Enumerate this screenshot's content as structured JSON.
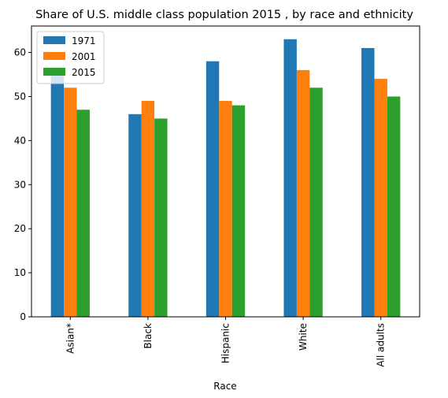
{
  "chart_data": {
    "type": "bar",
    "title": "Share of U.S. middle class population 2015 , by race and ethnicity",
    "xlabel": "Race",
    "ylabel": "",
    "categories": [
      "Asian*",
      "Black",
      "Hispanic",
      "White",
      "All adults"
    ],
    "series": [
      {
        "name": "1971",
        "color": "#1f77b4",
        "values": [
          55,
          46,
          58,
          63,
          61
        ]
      },
      {
        "name": "2001",
        "color": "#ff7f0e",
        "values": [
          52,
          49,
          49,
          56,
          54
        ]
      },
      {
        "name": "2015",
        "color": "#2ca02c",
        "values": [
          47,
          45,
          48,
          52,
          50
        ]
      }
    ],
    "ylim": [
      0,
      66
    ],
    "yticks": [
      0,
      10,
      20,
      30,
      40,
      50,
      60
    ],
    "grid": false,
    "legend_position": "top-left"
  }
}
